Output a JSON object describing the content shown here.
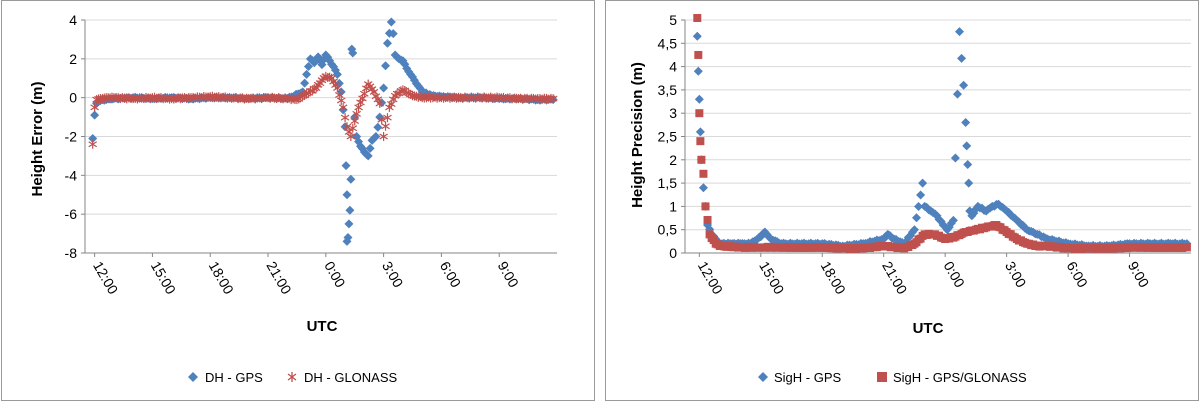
{
  "chart_data": [
    {
      "type": "scatter",
      "xlabel": "UTC",
      "ylabel": "Height Error (m)",
      "ylim": [
        -8,
        4
      ],
      "yticks": [
        4,
        2,
        0,
        -2,
        -4,
        -6,
        -8
      ],
      "xlim": [
        11.5,
        36
      ],
      "xticks": [
        {
          "v": 12,
          "label": "12:00"
        },
        {
          "v": 15,
          "label": "15:00"
        },
        {
          "v": 18,
          "label": "18:00"
        },
        {
          "v": 21,
          "label": "21:00"
        },
        {
          "v": 24,
          "label": "0:00"
        },
        {
          "v": 27,
          "label": "3:00"
        },
        {
          "v": 30,
          "label": "6:00"
        },
        {
          "v": 33,
          "label": "9:00"
        }
      ],
      "legend_position": "bottom",
      "series": [
        {
          "name": "DH - GPS",
          "color": "#4f81bd",
          "marker": "diamond",
          "x": [
            11.9,
            12.0,
            12.1,
            12.3,
            12.6,
            13,
            14,
            15,
            16,
            17,
            18,
            19,
            20,
            21,
            22,
            22.8,
            23.0,
            23.2,
            23.4,
            23.6,
            23.8,
            24.0,
            24.2,
            24.4,
            24.6,
            24.8,
            25.0,
            25.05,
            25.1,
            25.1,
            25.15,
            25.2,
            25.25,
            25.3,
            25.35,
            25.4,
            25.5,
            25.6,
            25.8,
            26.0,
            26.2,
            26.4,
            26.6,
            26.8,
            27.0,
            27.2,
            27.4,
            27.5,
            27.6,
            27.8,
            28.0,
            28.2,
            28.4,
            28.6,
            28.8,
            29.0,
            29.5,
            30,
            31,
            32,
            33,
            34,
            35,
            35.8
          ],
          "y": [
            -2.1,
            -0.9,
            -0.3,
            -0.15,
            -0.1,
            -0.05,
            0,
            -0.05,
            0,
            -0.05,
            0,
            0,
            -0.05,
            0,
            -0.05,
            0.3,
            1.2,
            2.0,
            1.8,
            2.1,
            1.7,
            2.2,
            1.9,
            1.6,
            1.2,
            0.3,
            -1.5,
            -3.5,
            -5.0,
            -7.4,
            -7.2,
            -6.5,
            -5.8,
            -4.2,
            2.5,
            2.3,
            -1.0,
            -2.0,
            -2.5,
            -2.8,
            -3.0,
            -2.2,
            -2.0,
            -1.0,
            0.5,
            2.8,
            3.9,
            3.3,
            2.2,
            2.0,
            1.9,
            1.5,
            1.2,
            0.9,
            0.6,
            0.3,
            0.1,
            0.05,
            0,
            0,
            -0.05,
            -0.05,
            -0.1,
            -0.1
          ]
        },
        {
          "name": "DH - GLONASS",
          "color": "#c0504d",
          "marker": "asterisk",
          "x": [
            11.9,
            12.0,
            12.1,
            12.3,
            12.6,
            13,
            14,
            15,
            16,
            17,
            18,
            19,
            20,
            21,
            22,
            22.5,
            23.0,
            23.5,
            23.8,
            24.0,
            24.3,
            24.6,
            24.9,
            25.1,
            25.3,
            25.5,
            25.7,
            26.0,
            26.2,
            26.5,
            26.8,
            27.0,
            27.3,
            27.6,
            28.0,
            28.5,
            29.0,
            30,
            31,
            32,
            33,
            34,
            35,
            35.8
          ],
          "y": [
            -2.4,
            -0.5,
            -0.1,
            -0.05,
            0,
            0,
            -0.05,
            0,
            -0.05,
            0,
            0.05,
            0,
            -0.05,
            0,
            -0.05,
            -0.1,
            0.2,
            0.5,
            0.9,
            1.1,
            1.0,
            0.5,
            -0.5,
            -1.5,
            -2.0,
            -1.2,
            -0.5,
            0.2,
            0.7,
            0.3,
            -0.3,
            -2.0,
            -0.5,
            0.1,
            0.4,
            0.1,
            0,
            0,
            0,
            0,
            0,
            -0.05,
            -0.05,
            -0.05
          ]
        }
      ]
    },
    {
      "type": "scatter",
      "xlabel": "UTC",
      "ylabel": "Height Precision (m)",
      "ylim": [
        0,
        5
      ],
      "yticks": [
        5,
        4.5,
        4,
        3.5,
        3,
        2.5,
        2,
        1.5,
        1,
        0.5,
        0
      ],
      "ytick_labels": [
        "5",
        "4,5",
        "4",
        "3,5",
        "3",
        "2,5",
        "2",
        "1,5",
        "1",
        "0,5",
        "0"
      ],
      "xlim": [
        11.3,
        36
      ],
      "xticks": [
        {
          "v": 12,
          "label": "12:00"
        },
        {
          "v": 15,
          "label": "15:00"
        },
        {
          "v": 18,
          "label": "18:00"
        },
        {
          "v": 21,
          "label": "21:00"
        },
        {
          "v": 24,
          "label": "0:00"
        },
        {
          "v": 27,
          "label": "3:00"
        },
        {
          "v": 30,
          "label": "6:00"
        },
        {
          "v": 33,
          "label": "9:00"
        }
      ],
      "legend_position": "bottom",
      "series": [
        {
          "name": "SigH - GPS",
          "color": "#4f81bd",
          "marker": "diamond",
          "x": [
            11.9,
            11.95,
            12.0,
            12.05,
            12.1,
            12.2,
            12.3,
            12.4,
            12.6,
            12.8,
            13,
            13.5,
            14,
            14.5,
            15,
            15.2,
            15.5,
            16,
            17,
            18,
            19,
            20,
            21,
            21.2,
            21.5,
            22,
            22.5,
            22.9,
            23.0,
            23.3,
            23.6,
            23.9,
            24.1,
            24.4,
            24.7,
            24.9,
            25.0,
            25.05,
            25.1,
            25.15,
            25.2,
            25.3,
            25.6,
            26.0,
            26.3,
            26.6,
            27.0,
            27.5,
            28,
            28.5,
            29,
            30,
            31,
            32,
            33,
            34,
            35,
            35.8
          ],
          "y": [
            4.65,
            3.9,
            3.3,
            2.6,
            2.0,
            1.4,
            1.0,
            0.6,
            0.4,
            0.3,
            0.2,
            0.2,
            0.2,
            0.2,
            0.35,
            0.45,
            0.3,
            0.2,
            0.2,
            0.2,
            0.15,
            0.2,
            0.3,
            0.4,
            0.3,
            0.2,
            0.5,
            1.5,
            1.0,
            0.9,
            0.8,
            0.6,
            0.5,
            0.7,
            4.75,
            3.6,
            2.8,
            2.3,
            1.9,
            1.5,
            0.9,
            0.8,
            1.0,
            0.9,
            1.0,
            1.05,
            0.9,
            0.7,
            0.5,
            0.4,
            0.3,
            0.2,
            0.15,
            0.15,
            0.2,
            0.2,
            0.2,
            0.2
          ]
        },
        {
          "name": "SigH - GPS/GLONASS",
          "color": "#c0504d",
          "marker": "square",
          "x": [
            11.9,
            11.95,
            12.0,
            12.05,
            12.1,
            12.2,
            12.3,
            12.5,
            12.8,
            13,
            14,
            15,
            16,
            17,
            18,
            19,
            20,
            21,
            22,
            22.5,
            23.0,
            23.5,
            24.0,
            24.5,
            25.0,
            25.5,
            26.0,
            26.5,
            27.0,
            27.5,
            28,
            28.5,
            29,
            30,
            31,
            32,
            33,
            34,
            35,
            35.8
          ],
          "y": [
            5.2,
            4.25,
            3.0,
            2.4,
            2.0,
            1.7,
            1.0,
            0.4,
            0.2,
            0.15,
            0.12,
            0.12,
            0.12,
            0.12,
            0.12,
            0.1,
            0.1,
            0.15,
            0.1,
            0.2,
            0.4,
            0.4,
            0.3,
            0.35,
            0.45,
            0.5,
            0.55,
            0.6,
            0.45,
            0.3,
            0.2,
            0.15,
            0.15,
            0.1,
            0.1,
            0.1,
            0.12,
            0.12,
            0.12,
            0.12
          ]
        }
      ]
    }
  ]
}
